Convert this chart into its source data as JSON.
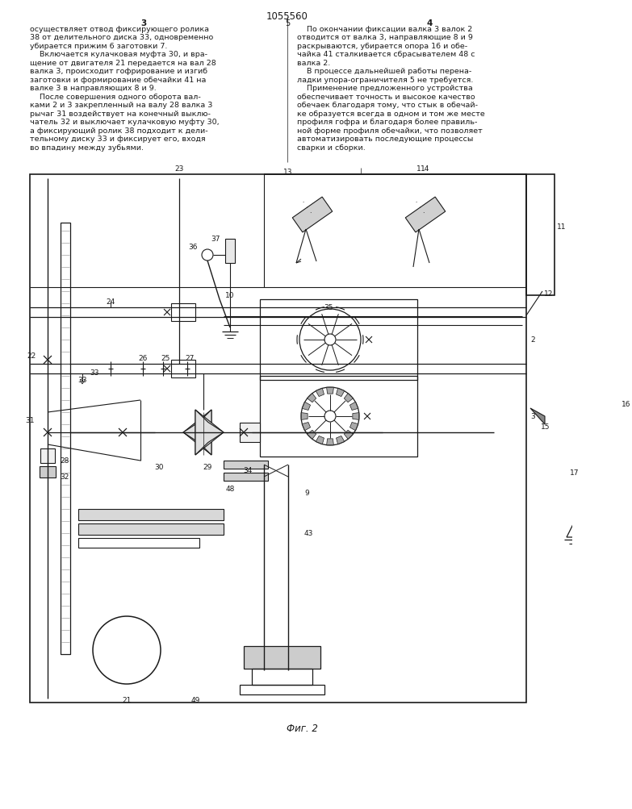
{
  "title": "1055560",
  "background": "#ffffff",
  "line_color": "#1a1a1a",
  "page_width": 7.07,
  "page_height": 10.0,
  "col3_header": "3",
  "col4_header": "4",
  "col3_lines": [
    "осуществляет отвод фиксирующего ролика",
    "38 от делительного диска 33, одновременно",
    "убирается прижим 6 заготовки 7.",
    "    Включается кулачковая муфта 30, и вра-",
    "щение от двигателя 21 передается на вал 28",
    "валка 3, происходит гофрирование и изгиб",
    "заготовки и формирование обечайки 41 на",
    "валке 3 в направляющих 8 и 9.",
    "    После совершения одного оборота вал-",
    "ками 2 и 3 закрепленный на валу 28 валка 3",
    "рычаг 31 воздействует на конечный выклю-",
    "чатель 32 и выключает кулачковую муфту 30,",
    "а фиксирующий ролик 38 подходит к дели-",
    "тельному диску 33 и фиксирует его, входя",
    "во впадину между зубьями."
  ],
  "col4_lines": [
    "    По окончании фиксации валка 3 валок 2",
    "отводится от валка 3, направляющие 8 и 9",
    "раскрываются, убирается опора 16 и обе-",
    "чайка 41 сталкивается сбрасывателем 48 с",
    "валка 2.",
    "    В процессе дальнейшей работы перена-",
    "ладки упора-ограничителя 5 не требуется.",
    "    Применение предложенного устройства",
    "обеспечивает точность и высокое качество",
    "обечаек благодаря тому, что стык в обечай-",
    "ке образуется всегда в одном и том же месте",
    "профиля гофра и благодаря более правиль-",
    "ной форме профиля обечайки, что позволяет",
    "автоматизировать последующие процессы",
    "сварки и сборки."
  ],
  "fig_caption": "Фиг. 2",
  "line_number_center": "5"
}
